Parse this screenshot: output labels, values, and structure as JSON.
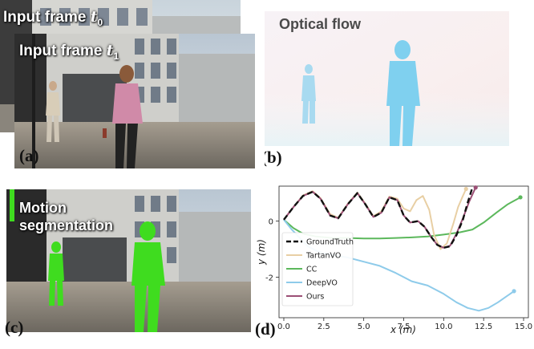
{
  "panels": {
    "a": {
      "tag": "(a)",
      "frame_back_label": "Input frame",
      "frame_back_sub": "0",
      "frame_front_label": "Input frame",
      "frame_front_sub": "1"
    },
    "b": {
      "tag": "(b)",
      "label": "Optical flow"
    },
    "c": {
      "tag": "(c)",
      "label_line1": "Motion",
      "label_line2": "segmentation"
    },
    "d": {
      "tag": "(d)"
    }
  },
  "colors": {
    "groundtruth": "#111111",
    "tartanvo": "#e8cfa4",
    "cc": "#5cb85c",
    "deepvo": "#8ecbea",
    "ours": "#9b4f75",
    "flow_person": "#7fd0ef",
    "seg_green": "#3fdc1f"
  },
  "chart_data": {
    "type": "line",
    "xlabel": "x (m)",
    "ylabel": "y (m)",
    "xlim": [
      -0.3,
      15.3
    ],
    "ylim": [
      -3.45,
      1.25
    ],
    "xticks": [
      "0.0",
      "2.5",
      "5.0",
      "7.5",
      "10.0",
      "12.5",
      "15.0"
    ],
    "yticks": [
      "0",
      "-2"
    ],
    "grid": false,
    "legend_position": "lower-left",
    "series": [
      {
        "name": "GroundTruth",
        "style": "dashed",
        "x": [
          0,
          0.6,
          1.2,
          1.8,
          2.3,
          2.9,
          3.4,
          4.0,
          4.6,
          5.1,
          5.6,
          6.1,
          6.6,
          7.1,
          7.5,
          7.9,
          8.4,
          8.8,
          9.2,
          9.6,
          10.0,
          10.4,
          10.8,
          11.2,
          11.5,
          11.8
        ],
        "y": [
          0.05,
          0.5,
          0.9,
          1.05,
          0.8,
          0.2,
          0.1,
          0.6,
          1.0,
          0.6,
          0.15,
          0.3,
          0.85,
          0.75,
          0.2,
          -0.05,
          0.0,
          -0.2,
          -0.55,
          -0.85,
          -0.95,
          -0.9,
          -0.5,
          0.05,
          0.65,
          1.2
        ]
      },
      {
        "name": "TartanVO",
        "style": "solid",
        "x": [
          0,
          0.6,
          1.2,
          1.8,
          2.3,
          2.9,
          3.4,
          4.0,
          4.6,
          5.1,
          5.6,
          6.1,
          6.6,
          7.1,
          7.5,
          7.9,
          8.3,
          8.7,
          9.1,
          9.4,
          9.8,
          10.2,
          10.6,
          10.9,
          11.2,
          11.4
        ],
        "y": [
          0.05,
          0.5,
          0.92,
          1.07,
          0.82,
          0.25,
          0.12,
          0.62,
          1.02,
          0.62,
          0.18,
          0.35,
          0.88,
          0.8,
          0.45,
          0.35,
          0.75,
          0.9,
          0.4,
          -0.5,
          -1.0,
          -0.8,
          -0.1,
          0.5,
          0.9,
          1.15
        ]
      },
      {
        "name": "CC",
        "style": "solid",
        "x": [
          0,
          0.6,
          1.2,
          2.0,
          3.0,
          4.0,
          5.0,
          6.0,
          7.0,
          8.0,
          9.0,
          10.0,
          11.0,
          11.8,
          12.5,
          13.3,
          14.0,
          14.8
        ],
        "y": [
          0.05,
          -0.25,
          -0.45,
          -0.55,
          -0.6,
          -0.6,
          -0.62,
          -0.62,
          -0.6,
          -0.58,
          -0.55,
          -0.48,
          -0.4,
          -0.3,
          -0.05,
          0.3,
          0.6,
          0.85
        ]
      },
      {
        "name": "DeepVO",
        "style": "solid",
        "x": [
          0,
          0.5,
          1.0,
          1.5,
          2.0,
          2.5,
          3.0,
          4.0,
          5.0,
          6.0,
          7.0,
          8.0,
          9.0,
          10.0,
          10.8,
          11.5,
          12.2,
          12.8,
          13.4,
          13.9,
          14.4
        ],
        "y": [
          0.05,
          -0.3,
          -0.6,
          -0.9,
          -1.05,
          -1.15,
          -1.2,
          -1.3,
          -1.45,
          -1.6,
          -1.85,
          -2.15,
          -2.3,
          -2.6,
          -2.9,
          -3.1,
          -3.2,
          -3.1,
          -2.9,
          -2.7,
          -2.5
        ]
      },
      {
        "name": "Ours",
        "style": "solid",
        "x": [
          0,
          0.6,
          1.2,
          1.8,
          2.3,
          2.9,
          3.4,
          4.0,
          4.6,
          5.1,
          5.6,
          6.1,
          6.6,
          7.1,
          7.5,
          7.9,
          8.4,
          8.8,
          9.2,
          9.6,
          10.0,
          10.4,
          10.8,
          11.2,
          11.6,
          12.0
        ],
        "y": [
          0.05,
          0.5,
          0.9,
          1.05,
          0.8,
          0.2,
          0.1,
          0.6,
          1.0,
          0.6,
          0.15,
          0.3,
          0.85,
          0.75,
          0.2,
          -0.05,
          0.0,
          -0.2,
          -0.55,
          -0.85,
          -0.95,
          -0.88,
          -0.45,
          0.1,
          0.7,
          1.2
        ]
      }
    ]
  }
}
